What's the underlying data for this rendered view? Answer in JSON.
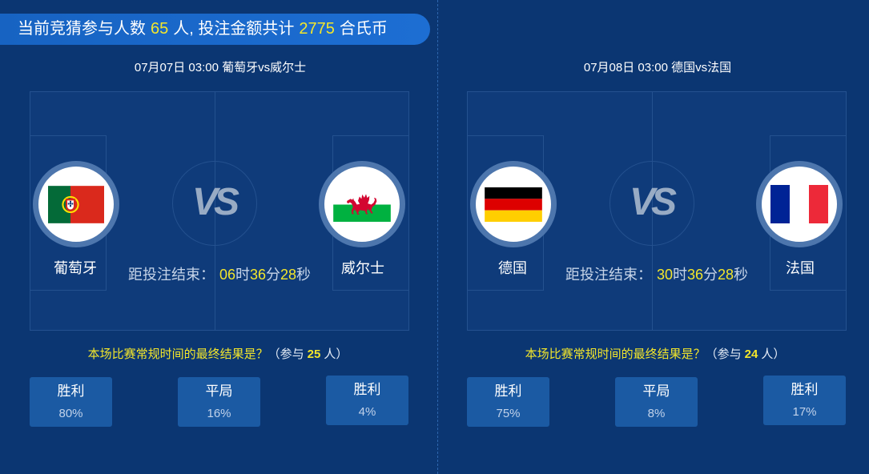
{
  "header": {
    "prefix": "当前竞猜参与人数",
    "participants": "65",
    "middle": "人, 投注金额共计",
    "amount": "2775",
    "suffix": "合氏币"
  },
  "matches": [
    {
      "title": "07月07日 03:00 葡萄牙vs威尔士",
      "vs": "VS",
      "home": {
        "name": "葡萄牙",
        "flag_icon": "portugal-flag-icon"
      },
      "away": {
        "name": "威尔士",
        "flag_icon": "wales-flag-icon"
      },
      "countdown": {
        "label": "距投注结束：",
        "hours": "06",
        "h_unit": "时",
        "minutes": "36",
        "m_unit": "分",
        "seconds": "28",
        "s_unit": "秒"
      },
      "question": {
        "text": "本场比赛常规时间的最终结果是？",
        "open": "（参与",
        "count": "25",
        "close": "人）"
      },
      "options": [
        {
          "label": "胜利",
          "percent": "80%"
        },
        {
          "label": "平局",
          "percent": "16%"
        },
        {
          "label": "胜利",
          "percent": "4%"
        }
      ]
    },
    {
      "title": "07月08日 03:00 德国vs法国",
      "vs": "VS",
      "home": {
        "name": "德国",
        "flag_icon": "germany-flag-icon"
      },
      "away": {
        "name": "法国",
        "flag_icon": "france-flag-icon"
      },
      "countdown": {
        "label": "距投注结束：",
        "hours": "30",
        "h_unit": "时",
        "minutes": "36",
        "m_unit": "分",
        "seconds": "28",
        "s_unit": "秒"
      },
      "question": {
        "text": "本场比赛常规时间的最终结果是？",
        "open": "（参与",
        "count": "24",
        "close": "人）"
      },
      "options": [
        {
          "label": "胜利",
          "percent": "75%"
        },
        {
          "label": "平局",
          "percent": "8%"
        },
        {
          "label": "胜利",
          "percent": "17%"
        }
      ]
    }
  ],
  "colors": {
    "bg": "#0b3672",
    "field": "#0f3b7a",
    "line": "#24518f",
    "yellow": "#f3e62b",
    "button": "#1b5aa3",
    "muted": "#c6d4e8",
    "ring": "#4d76ad",
    "vs": "#98abc4",
    "pill": "#1763c2"
  }
}
